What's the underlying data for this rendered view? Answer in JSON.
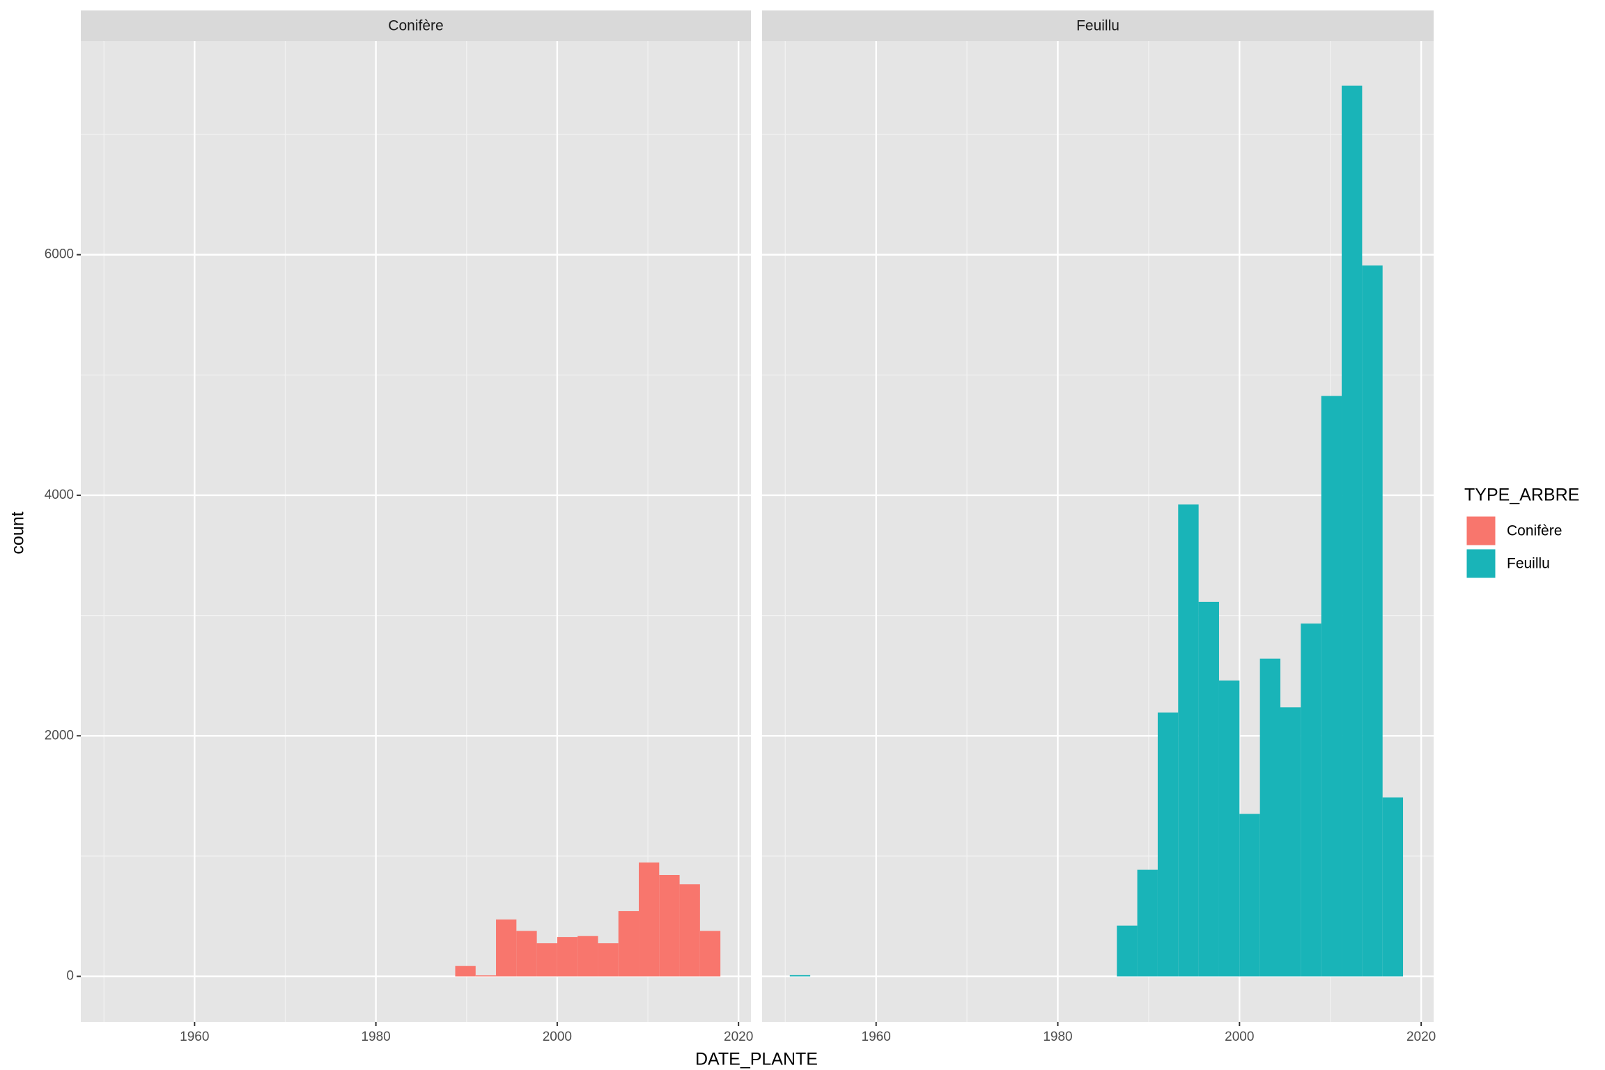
{
  "chart_data": {
    "type": "histogram",
    "x_label": "DATE_PLANTE",
    "y_label": "count",
    "legend_title": "TYPE_ARBRE",
    "bins": [
      1950.5,
      1952.75,
      1955,
      1957.25,
      1959.5,
      1961.75,
      1964,
      1966.25,
      1968.5,
      1970.75,
      1973,
      1975.25,
      1977.5,
      1979.75,
      1982,
      1984.25,
      1986.5,
      1988.75,
      1991,
      1993.25,
      1995.5,
      1997.75,
      2000,
      2002.25,
      2004.5,
      2006.75,
      2009,
      2011.25,
      2013.5,
      2015.75,
      2018
    ],
    "series": [
      {
        "name": "Conifère",
        "color": "#f8766d",
        "values": [
          0,
          0,
          0,
          0,
          0,
          0,
          0,
          0,
          0,
          0,
          0,
          0,
          0,
          0,
          0,
          0,
          0,
          86,
          8,
          473,
          378,
          275,
          327,
          335,
          275,
          542,
          946,
          843,
          766,
          378
        ]
      },
      {
        "name": "Feuillu",
        "color": "#19b4b8",
        "values": [
          10,
          0,
          0,
          0,
          0,
          0,
          0,
          0,
          0,
          0,
          0,
          0,
          0,
          0,
          0,
          0,
          422,
          886,
          2194,
          3923,
          3114,
          2460,
          1351,
          2641,
          2237,
          2933,
          4826,
          7406,
          5910,
          1488
        ]
      }
    ],
    "xlim": [
      1947.45,
      2021.37
    ],
    "ylim": [
      -379,
      7776
    ],
    "xticks": [
      1960,
      1980,
      2000,
      2020
    ],
    "yticks": [
      0,
      2000,
      4000,
      6000
    ],
    "xminor": [
      1950,
      1970,
      1990,
      2010
    ],
    "yminor": [
      1000,
      3000,
      5000,
      7000
    ],
    "grid": true
  }
}
